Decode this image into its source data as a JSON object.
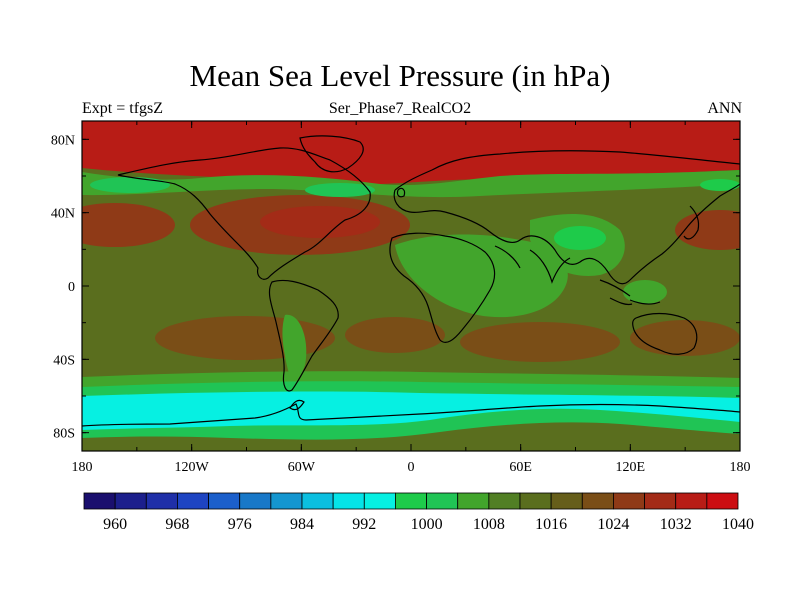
{
  "title": "Mean Sea Level Pressure (in hPa)",
  "left_label": "Expt = tfgsZ",
  "center_label": "Ser_Phase7_RealCO2",
  "right_label": "ANN",
  "lat_ticks": [
    "80N",
    "40N",
    "0",
    "40S",
    "80S"
  ],
  "lon_ticks": [
    "180",
    "120W",
    "60W",
    "0",
    "60E",
    "120E",
    "180"
  ],
  "colorbar": {
    "colors": [
      "#1a0f6e",
      "#1c1f8c",
      "#1f2fa8",
      "#1e44c2",
      "#1b5fcb",
      "#1878c8",
      "#1496d0",
      "#0bbfe0",
      "#05e4e8",
      "#06f0e2",
      "#1ecb4a",
      "#20c455",
      "#42a52c",
      "#517f24",
      "#5a6e1e",
      "#665e1a",
      "#7a4e17",
      "#8f3a17",
      "#a32b17",
      "#b81c16",
      "#cc0d12"
    ],
    "labels": [
      "960",
      "968",
      "976",
      "984",
      "992",
      "1000",
      "1008",
      "1016",
      "1024",
      "1032",
      "1040"
    ]
  },
  "colors": {
    "base": "#5a6e1e",
    "dark_red": "#b81c16",
    "red": "#a32b17",
    "rust": "#8f3a17",
    "brown": "#7a4e17",
    "olive_light": "#42a52c",
    "green": "#20c455",
    "bright_green": "#1ecb4a",
    "cyan": "#06f0e2",
    "coast": "#000000"
  }
}
